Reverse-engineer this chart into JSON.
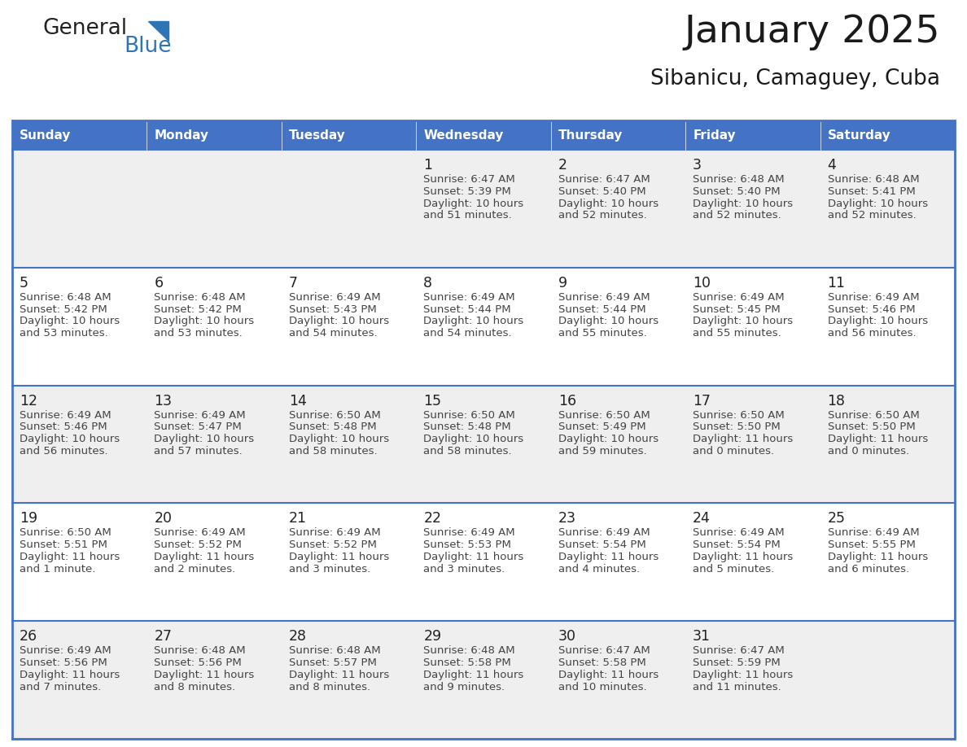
{
  "title": "January 2025",
  "subtitle": "Sibanicu, Camaguey, Cuba",
  "days_of_week": [
    "Sunday",
    "Monday",
    "Tuesday",
    "Wednesday",
    "Thursday",
    "Friday",
    "Saturday"
  ],
  "header_bg": "#4472C4",
  "header_text": "#FFFFFF",
  "row_bg": [
    "#EFEFEF",
    "#FFFFFF",
    "#EFEFEF",
    "#FFFFFF",
    "#EFEFEF"
  ],
  "cell_border": "#4472C4",
  "day_num_color": "#333333",
  "text_color": "#444444",
  "logo_general_color": "#222222",
  "logo_blue_color": "#2E75B6",
  "calendar_data": [
    [
      null,
      null,
      null,
      {
        "day": 1,
        "sunrise": "6:47 AM",
        "sunset": "5:39 PM",
        "daylight_h": "10 hours",
        "daylight_m": "and 51 minutes."
      },
      {
        "day": 2,
        "sunrise": "6:47 AM",
        "sunset": "5:40 PM",
        "daylight_h": "10 hours",
        "daylight_m": "and 52 minutes."
      },
      {
        "day": 3,
        "sunrise": "6:48 AM",
        "sunset": "5:40 PM",
        "daylight_h": "10 hours",
        "daylight_m": "and 52 minutes."
      },
      {
        "day": 4,
        "sunrise": "6:48 AM",
        "sunset": "5:41 PM",
        "daylight_h": "10 hours",
        "daylight_m": "and 52 minutes."
      }
    ],
    [
      {
        "day": 5,
        "sunrise": "6:48 AM",
        "sunset": "5:42 PM",
        "daylight_h": "10 hours",
        "daylight_m": "and 53 minutes."
      },
      {
        "day": 6,
        "sunrise": "6:48 AM",
        "sunset": "5:42 PM",
        "daylight_h": "10 hours",
        "daylight_m": "and 53 minutes."
      },
      {
        "day": 7,
        "sunrise": "6:49 AM",
        "sunset": "5:43 PM",
        "daylight_h": "10 hours",
        "daylight_m": "and 54 minutes."
      },
      {
        "day": 8,
        "sunrise": "6:49 AM",
        "sunset": "5:44 PM",
        "daylight_h": "10 hours",
        "daylight_m": "and 54 minutes."
      },
      {
        "day": 9,
        "sunrise": "6:49 AM",
        "sunset": "5:44 PM",
        "daylight_h": "10 hours",
        "daylight_m": "and 55 minutes."
      },
      {
        "day": 10,
        "sunrise": "6:49 AM",
        "sunset": "5:45 PM",
        "daylight_h": "10 hours",
        "daylight_m": "and 55 minutes."
      },
      {
        "day": 11,
        "sunrise": "6:49 AM",
        "sunset": "5:46 PM",
        "daylight_h": "10 hours",
        "daylight_m": "and 56 minutes."
      }
    ],
    [
      {
        "day": 12,
        "sunrise": "6:49 AM",
        "sunset": "5:46 PM",
        "daylight_h": "10 hours",
        "daylight_m": "and 56 minutes."
      },
      {
        "day": 13,
        "sunrise": "6:49 AM",
        "sunset": "5:47 PM",
        "daylight_h": "10 hours",
        "daylight_m": "and 57 minutes."
      },
      {
        "day": 14,
        "sunrise": "6:50 AM",
        "sunset": "5:48 PM",
        "daylight_h": "10 hours",
        "daylight_m": "and 58 minutes."
      },
      {
        "day": 15,
        "sunrise": "6:50 AM",
        "sunset": "5:48 PM",
        "daylight_h": "10 hours",
        "daylight_m": "and 58 minutes."
      },
      {
        "day": 16,
        "sunrise": "6:50 AM",
        "sunset": "5:49 PM",
        "daylight_h": "10 hours",
        "daylight_m": "and 59 minutes."
      },
      {
        "day": 17,
        "sunrise": "6:50 AM",
        "sunset": "5:50 PM",
        "daylight_h": "11 hours",
        "daylight_m": "and 0 minutes."
      },
      {
        "day": 18,
        "sunrise": "6:50 AM",
        "sunset": "5:50 PM",
        "daylight_h": "11 hours",
        "daylight_m": "and 0 minutes."
      }
    ],
    [
      {
        "day": 19,
        "sunrise": "6:50 AM",
        "sunset": "5:51 PM",
        "daylight_h": "11 hours",
        "daylight_m": "and 1 minute."
      },
      {
        "day": 20,
        "sunrise": "6:49 AM",
        "sunset": "5:52 PM",
        "daylight_h": "11 hours",
        "daylight_m": "and 2 minutes."
      },
      {
        "day": 21,
        "sunrise": "6:49 AM",
        "sunset": "5:52 PM",
        "daylight_h": "11 hours",
        "daylight_m": "and 3 minutes."
      },
      {
        "day": 22,
        "sunrise": "6:49 AM",
        "sunset": "5:53 PM",
        "daylight_h": "11 hours",
        "daylight_m": "and 3 minutes."
      },
      {
        "day": 23,
        "sunrise": "6:49 AM",
        "sunset": "5:54 PM",
        "daylight_h": "11 hours",
        "daylight_m": "and 4 minutes."
      },
      {
        "day": 24,
        "sunrise": "6:49 AM",
        "sunset": "5:54 PM",
        "daylight_h": "11 hours",
        "daylight_m": "and 5 minutes."
      },
      {
        "day": 25,
        "sunrise": "6:49 AM",
        "sunset": "5:55 PM",
        "daylight_h": "11 hours",
        "daylight_m": "and 6 minutes."
      }
    ],
    [
      {
        "day": 26,
        "sunrise": "6:49 AM",
        "sunset": "5:56 PM",
        "daylight_h": "11 hours",
        "daylight_m": "and 7 minutes."
      },
      {
        "day": 27,
        "sunrise": "6:48 AM",
        "sunset": "5:56 PM",
        "daylight_h": "11 hours",
        "daylight_m": "and 8 minutes."
      },
      {
        "day": 28,
        "sunrise": "6:48 AM",
        "sunset": "5:57 PM",
        "daylight_h": "11 hours",
        "daylight_m": "and 8 minutes."
      },
      {
        "day": 29,
        "sunrise": "6:48 AM",
        "sunset": "5:58 PM",
        "daylight_h": "11 hours",
        "daylight_m": "and 9 minutes."
      },
      {
        "day": 30,
        "sunrise": "6:47 AM",
        "sunset": "5:58 PM",
        "daylight_h": "11 hours",
        "daylight_m": "and 10 minutes."
      },
      {
        "day": 31,
        "sunrise": "6:47 AM",
        "sunset": "5:59 PM",
        "daylight_h": "11 hours",
        "daylight_m": "and 11 minutes."
      },
      null
    ]
  ]
}
